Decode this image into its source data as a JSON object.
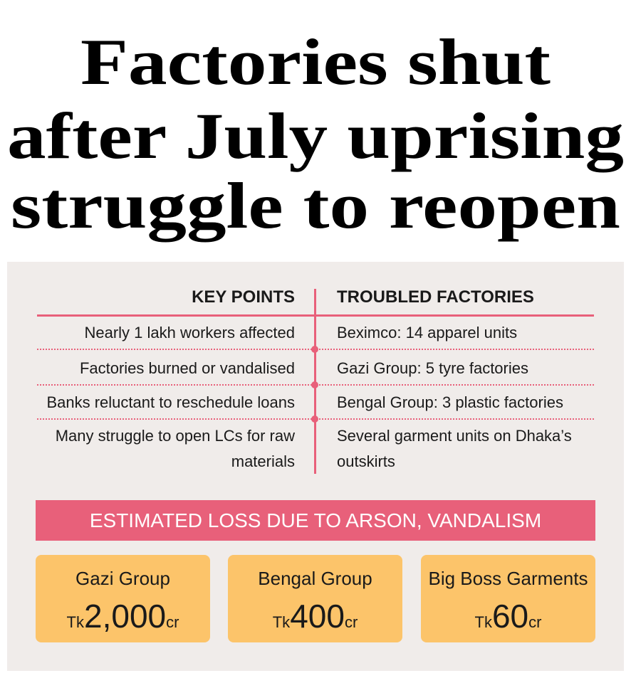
{
  "header": {
    "title_lines": [
      "Factories shut",
      "after July uprising",
      "struggle to reopen"
    ]
  },
  "key_points": {
    "heading": "KEY POINTS",
    "items": [
      "Nearly 1 lakh workers affected",
      "Factories burned or vandalised",
      "Banks reluctant to reschedule loans",
      "Many struggle to open LCs for raw materials"
    ]
  },
  "troubled_factories": {
    "heading": "TROUBLED FACTORIES",
    "items": [
      "Beximco: 14 apparel units",
      "Gazi Group: 5 tyre factories",
      "Bengal Group: 3 plastic factories",
      "Several garment units on Dhaka’s outskirts"
    ]
  },
  "losses": {
    "heading": "ESTIMATED LOSS DUE TO ARSON, VANDALISM",
    "cards": [
      {
        "name": "Gazi Group",
        "prefix": "Tk",
        "amount": "2,000",
        "unit": "cr"
      },
      {
        "name": "Bengal Group",
        "prefix": "Tk",
        "amount": "400",
        "unit": "cr"
      },
      {
        "name": "Big Boss Garments",
        "prefix": "Tk",
        "amount": "60",
        "unit": "cr"
      }
    ]
  }
}
